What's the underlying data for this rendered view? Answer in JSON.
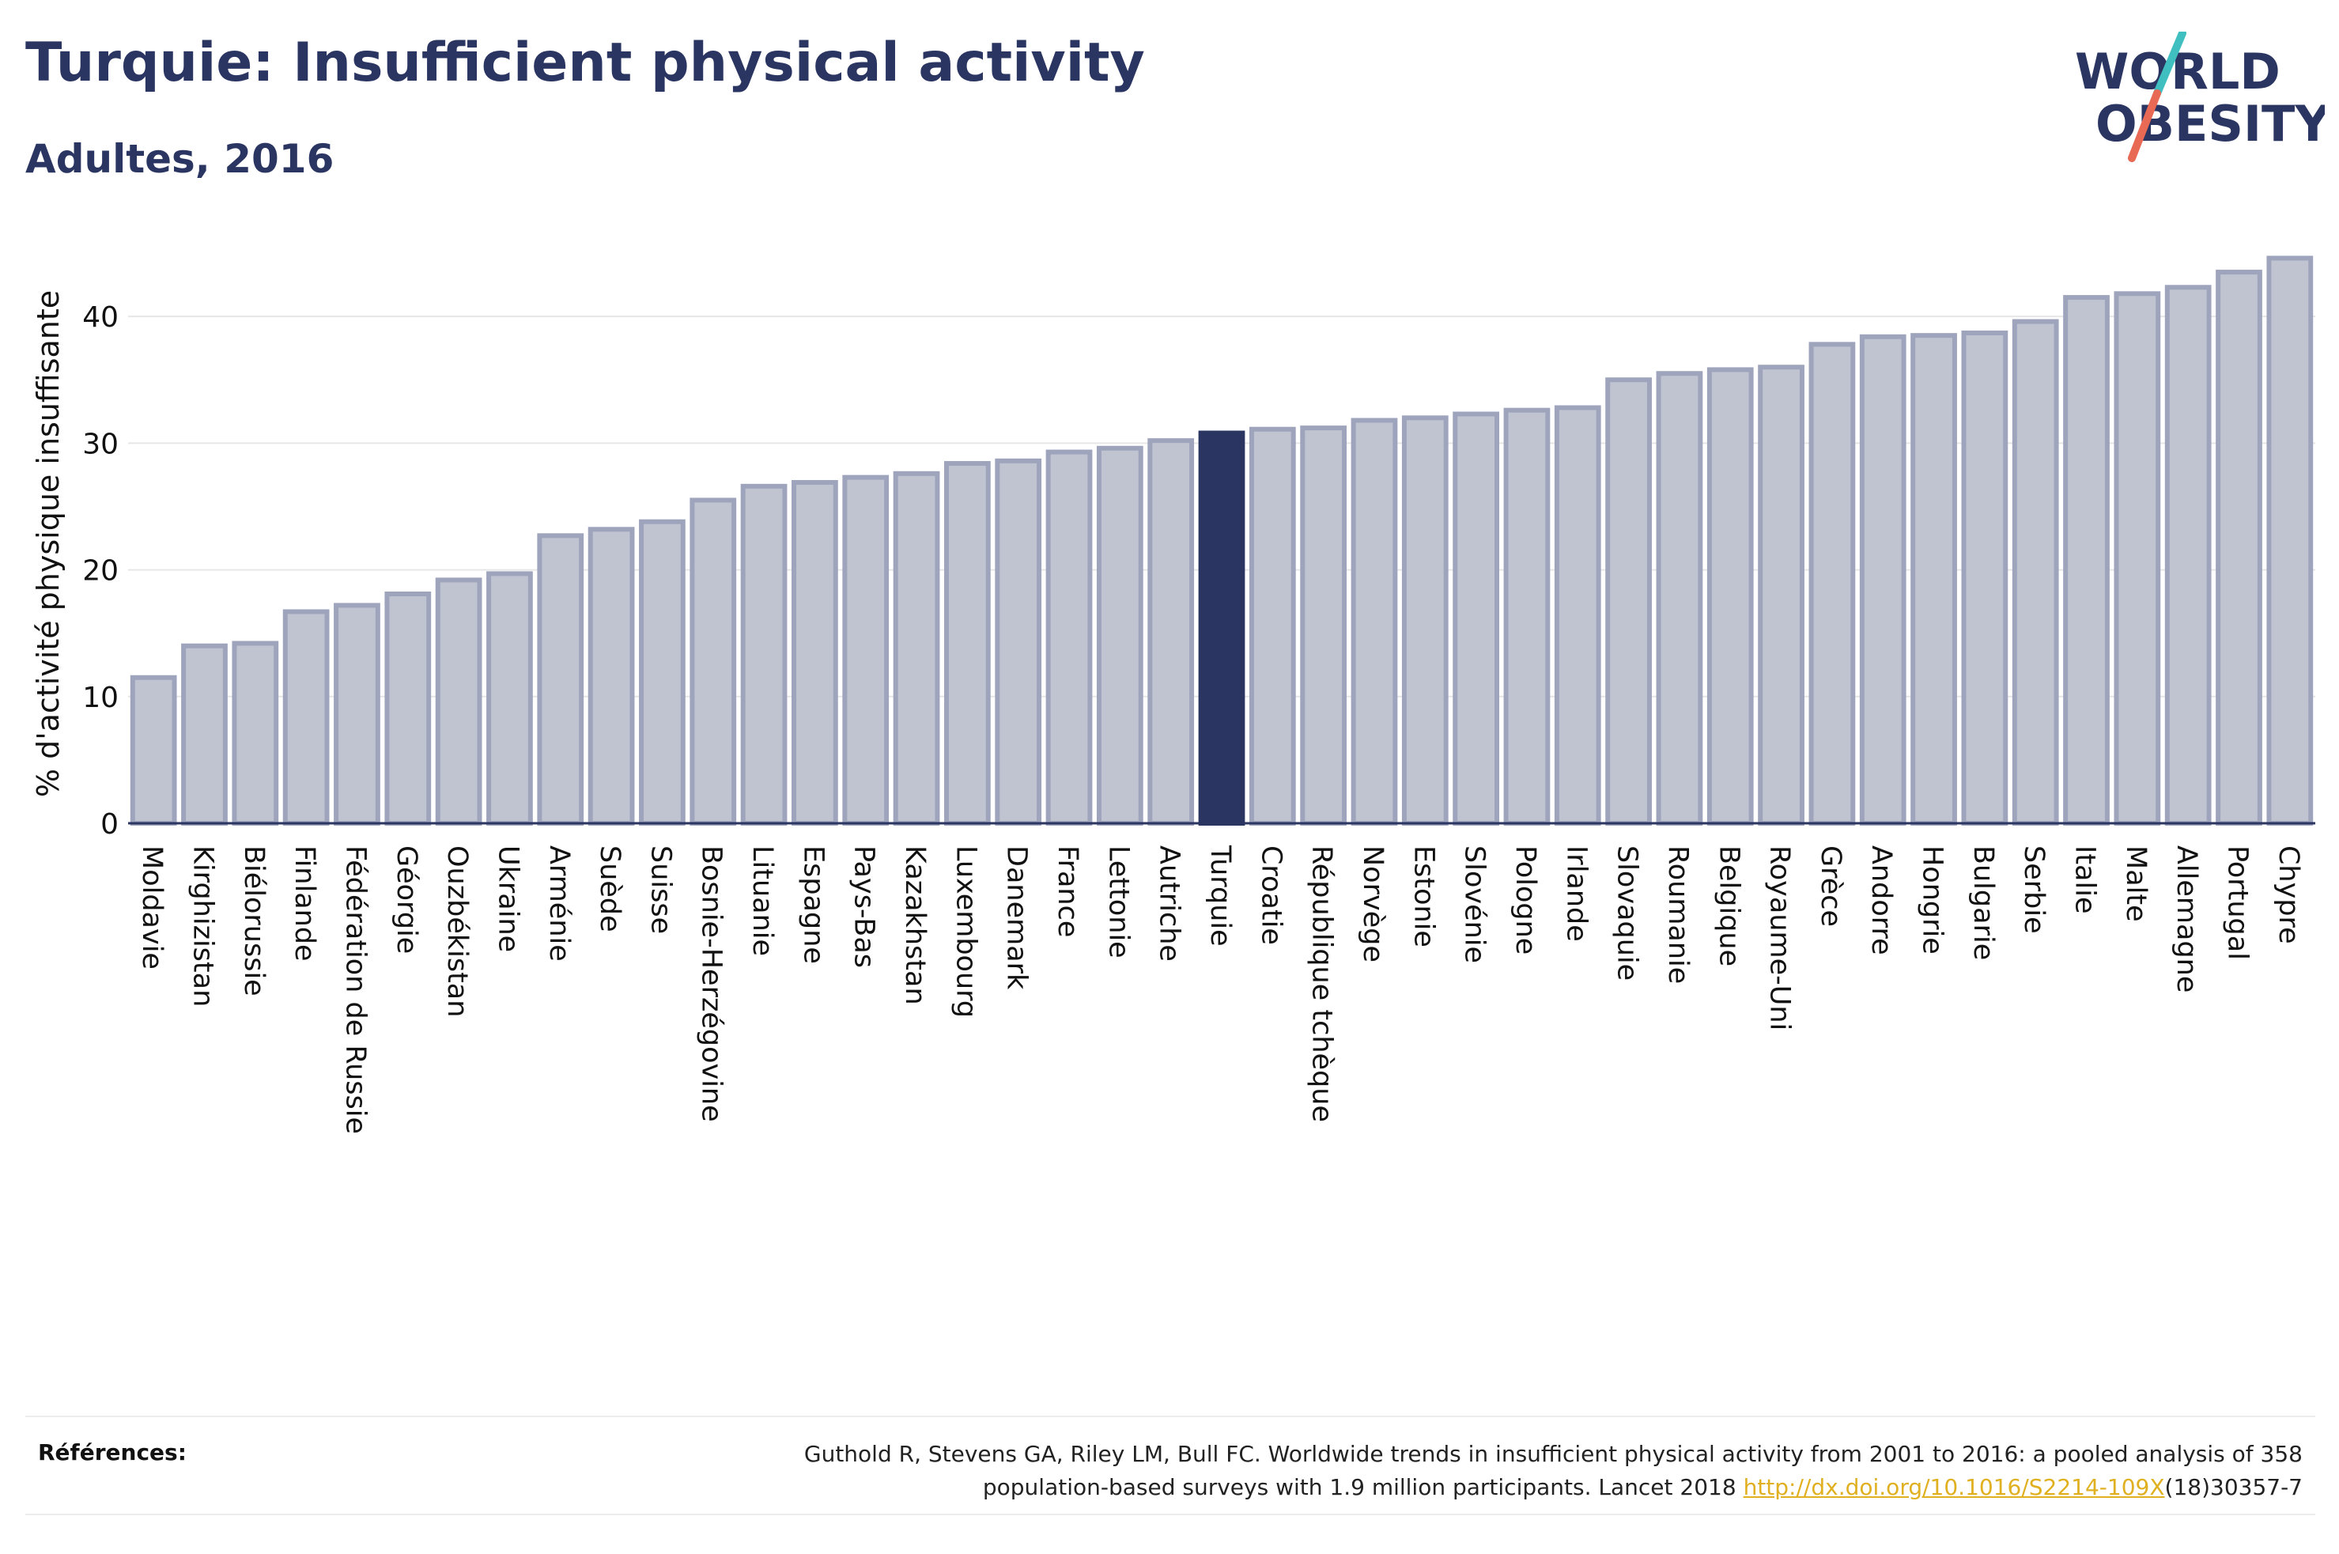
{
  "header": {
    "title": "Turquie: Insufficient physical activity",
    "subtitle": "Adultes, 2016"
  },
  "logo": {
    "line1": "WORLD",
    "line2": "OBESITY",
    "accent_colors": [
      "#3fbfbf",
      "#e86a55"
    ]
  },
  "references": {
    "label": "Références:",
    "text_line1": "Guthold R, Stevens GA, Riley LM, Bull FC. Worldwide trends in insufficient physical activity from 2001 to 2016: a pooled analysis of 358",
    "text_line2_prefix": "population-based surveys with 1.9 million participants. Lancet 2018 ",
    "link": "http://dx.doi.org/10.1016/S2214-109X",
    "text_line2_suffix": "(18)30357-7"
  },
  "chart_data": {
    "type": "bar",
    "ylabel": "% d'activité physique insuffisante",
    "xlabel": "",
    "ylim": [
      0,
      46
    ],
    "yticks": [
      0,
      10,
      20,
      30,
      40
    ],
    "grid": true,
    "highlight": "Turquie",
    "colors": {
      "bar": "#c0c4d1",
      "bar_border": "#9fa4bd",
      "highlight": "#2b3562"
    },
    "categories": [
      "Moldavie",
      "Kirghizistan",
      "Biélorussie",
      "Finlande",
      "Fédération de Russie",
      "Géorgie",
      "Ouzbékistan",
      "Ukraine",
      "Arménie",
      "Suède",
      "Suisse",
      "Bosnie-Herzégovine",
      "Lituanie",
      "Espagne",
      "Pays-Bas",
      "Kazakhstan",
      "Luxembourg",
      "Danemark",
      "France",
      "Lettonie",
      "Autriche",
      "Turquie",
      "Croatie",
      "République tchèque",
      "Norvège",
      "Estonie",
      "Slovénie",
      "Pologne",
      "Irlande",
      "Slovaquie",
      "Roumanie",
      "Belgique",
      "Royaume-Uni",
      "Grèce",
      "Andorre",
      "Hongrie",
      "Bulgarie",
      "Serbie",
      "Italie",
      "Malte",
      "Allemagne",
      "Portugal",
      "Chypre"
    ],
    "values": [
      11.5,
      14.0,
      14.2,
      16.7,
      17.2,
      18.1,
      19.2,
      19.7,
      22.7,
      23.2,
      23.8,
      25.5,
      26.6,
      26.9,
      27.3,
      27.6,
      28.4,
      28.6,
      29.3,
      29.6,
      30.2,
      30.8,
      31.1,
      31.2,
      31.8,
      32.0,
      32.3,
      32.6,
      32.8,
      35.0,
      35.5,
      35.8,
      36.0,
      37.8,
      38.4,
      38.5,
      38.7,
      39.6,
      41.5,
      41.8,
      42.3,
      43.5,
      44.6
    ]
  }
}
